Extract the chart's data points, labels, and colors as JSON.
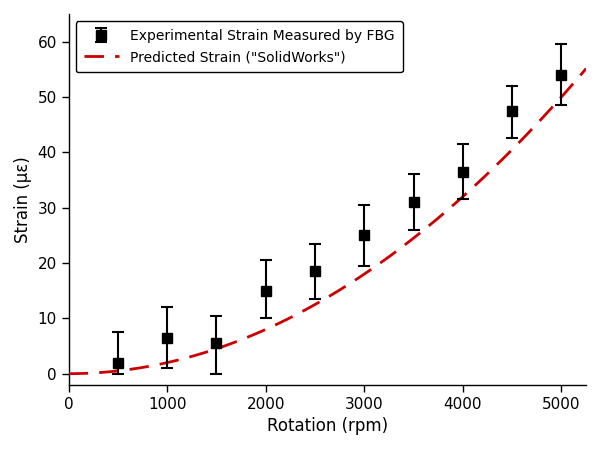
{
  "exp_x": [
    500,
    1000,
    1500,
    2000,
    2500,
    3000,
    3500,
    4000,
    4500,
    5000
  ],
  "exp_y": [
    2.0,
    6.5,
    5.5,
    15.0,
    18.5,
    25.0,
    31.0,
    36.5,
    47.5,
    54.0
  ],
  "exp_yerr_upper": [
    5.5,
    5.5,
    5.0,
    5.5,
    5.0,
    5.5,
    5.0,
    5.0,
    4.5,
    5.5
  ],
  "exp_yerr_lower": [
    2.0,
    5.5,
    5.5,
    5.0,
    5.0,
    5.5,
    5.0,
    5.0,
    5.0,
    5.5
  ],
  "pred_coeff": 2e-06,
  "xlabel": "Rotation (rpm)",
  "ylabel": "Strain (με)",
  "legend_exp": "Experimental Strain Measured by FBG",
  "legend_pred": "Predicted Strain (\"SolidWorks\")",
  "xlim": [
    0,
    5250
  ],
  "ylim": [
    -2,
    65
  ],
  "xticks": [
    0,
    1000,
    2000,
    3000,
    4000,
    5000
  ],
  "yticks": [
    0,
    10,
    20,
    30,
    40,
    50,
    60
  ],
  "background_color": "#ffffff",
  "exp_color": "#000000",
  "pred_color": "#cc0000",
  "marker_size": 7,
  "linewidth": 2.0,
  "capsize": 4
}
